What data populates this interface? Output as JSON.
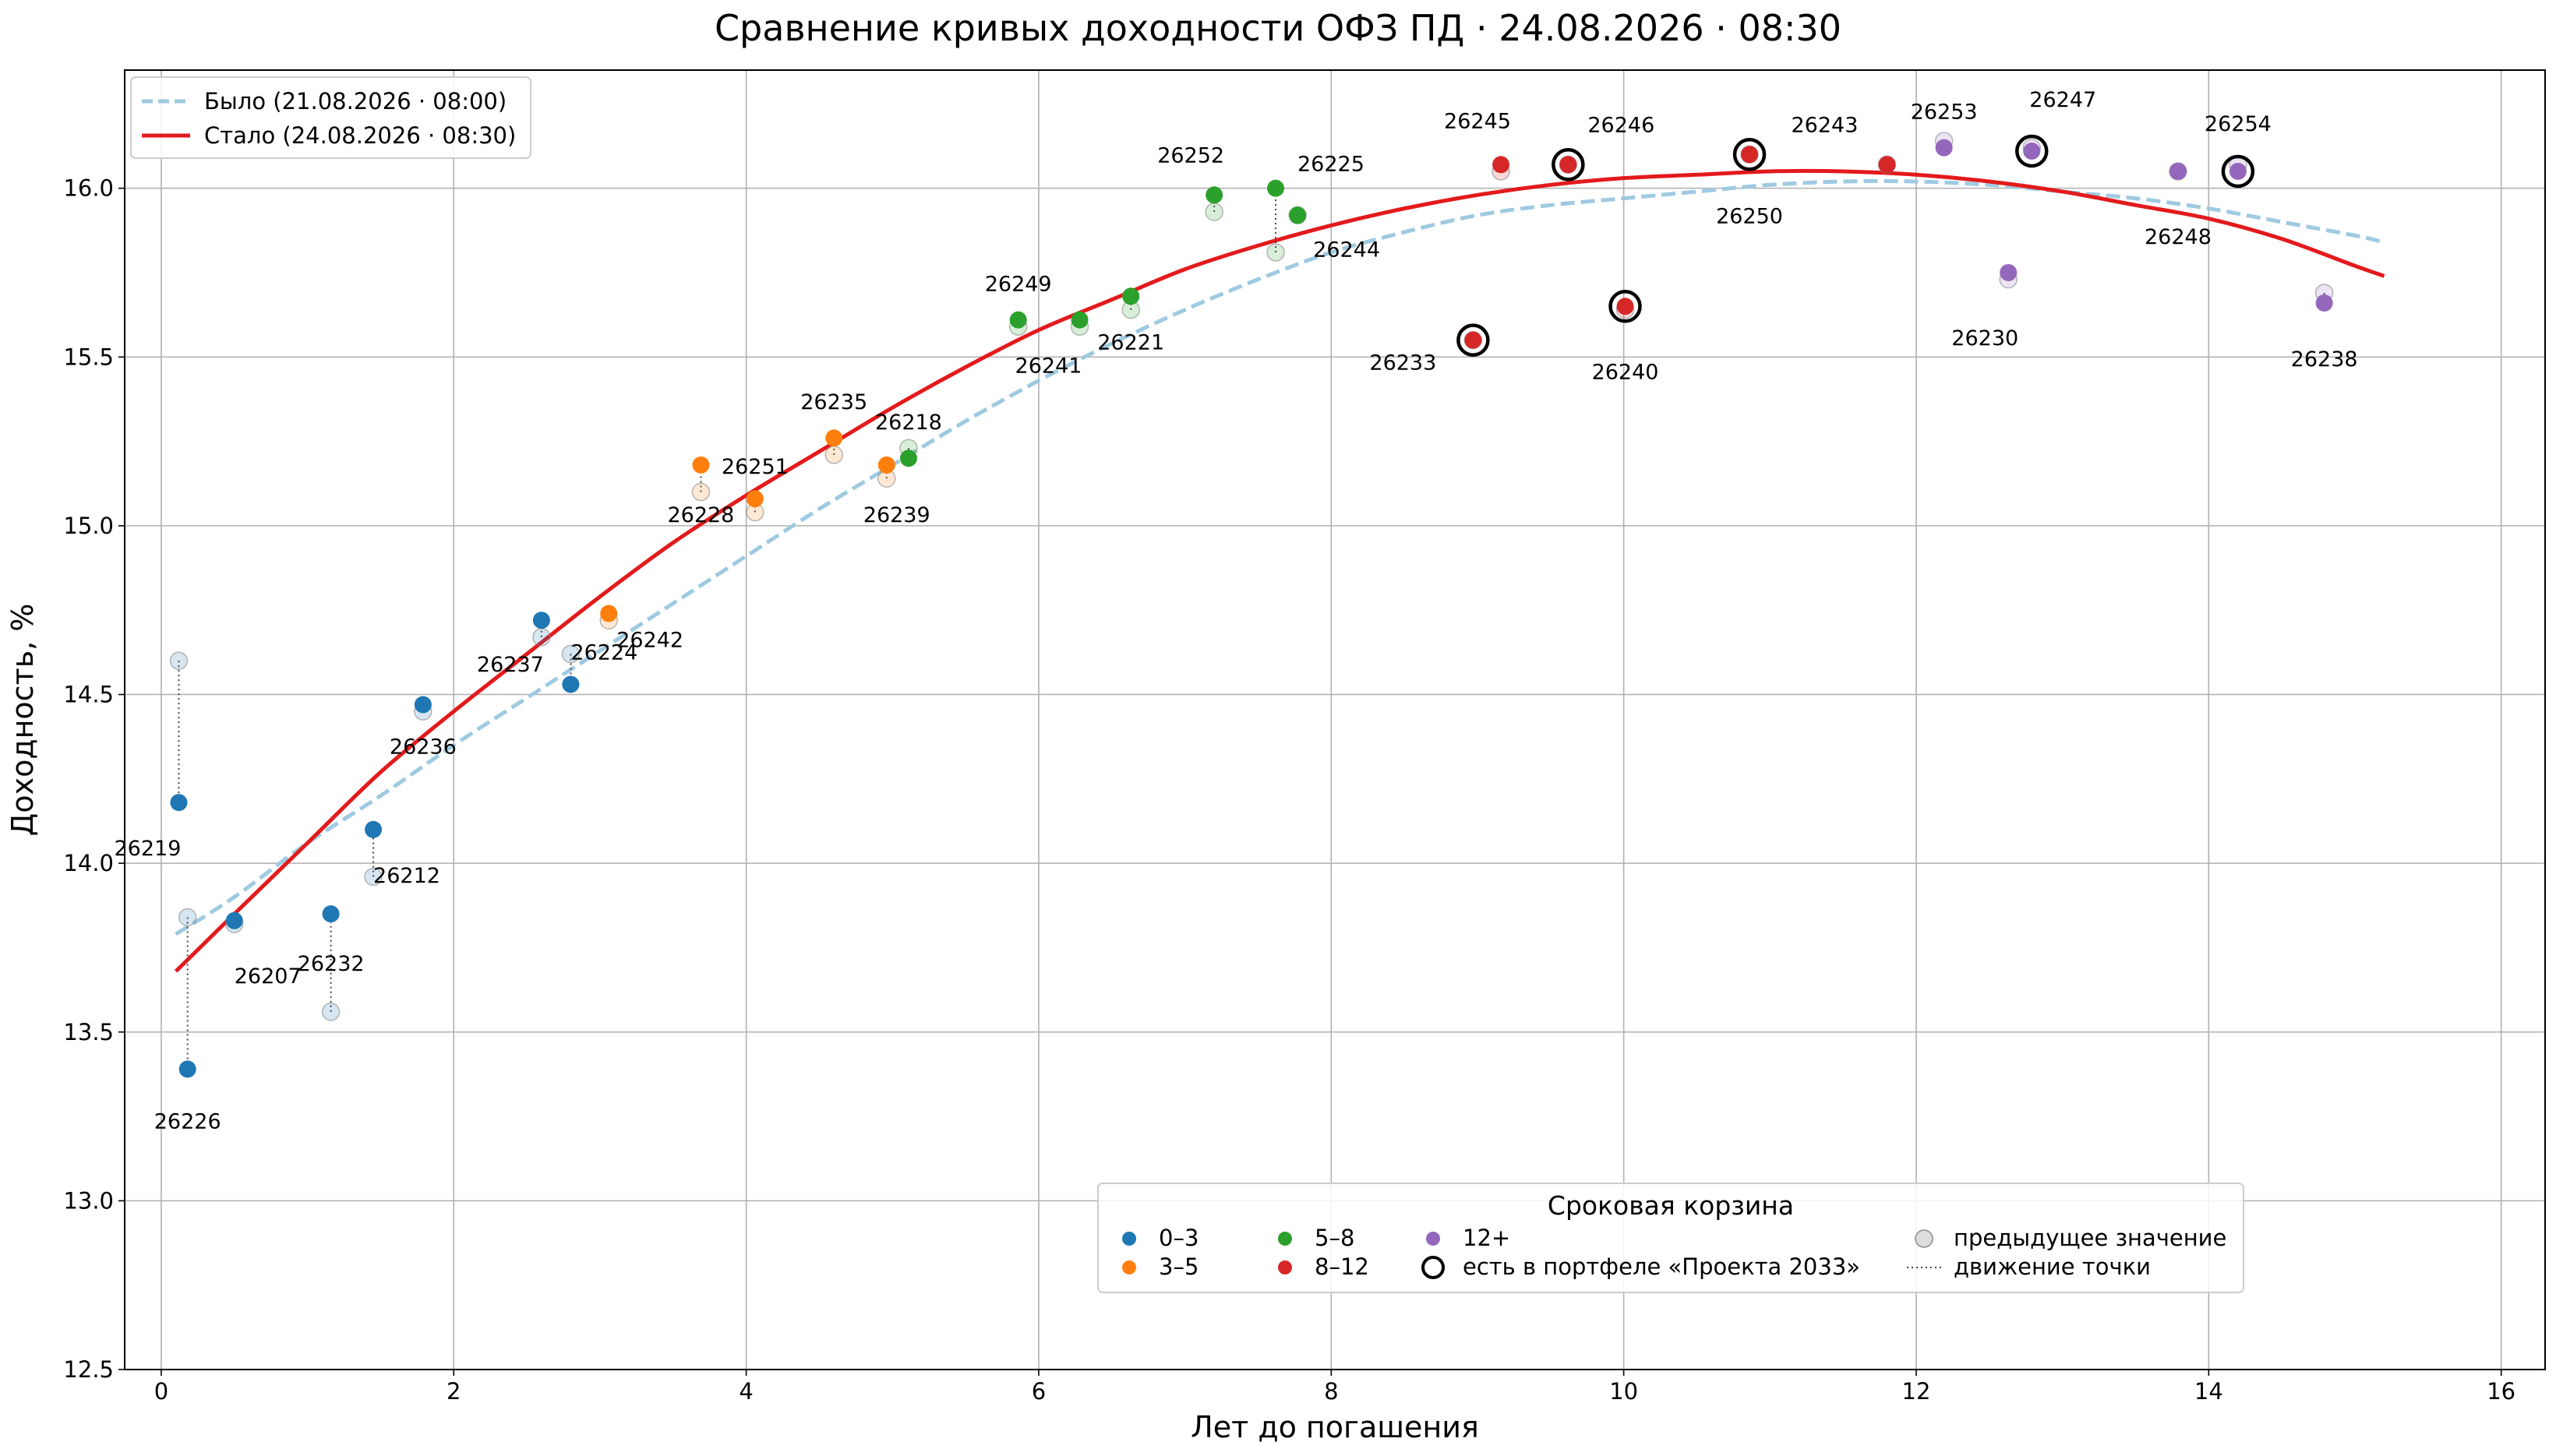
{
  "chart_data": {
    "type": "scatter",
    "title": "Сравнение кривых доходности ОФЗ ПД · 24.08.2026 · 08:30",
    "xlabel": "Лет до погашения",
    "ylabel": "Доходность, %",
    "xlim": [
      -0.25,
      16.3
    ],
    "ylim": [
      12.5,
      16.35
    ],
    "xticks": [
      0,
      2,
      4,
      6,
      8,
      10,
      12,
      14,
      16
    ],
    "yticks": [
      12.5,
      13.0,
      13.5,
      14.0,
      14.5,
      15.0,
      15.5,
      16.0
    ],
    "grid": true,
    "colors": {
      "0–3": "#1f77b4",
      "3–5": "#ff7f0e",
      "5–8": "#2ca02c",
      "8–12": "#d62728",
      "12+": "#9467bd",
      "old_curve": "#9ecae1",
      "new_curve": "#e31a1c"
    },
    "curves": [
      {
        "name": "Было (21.08.2026 · 08:00)",
        "style": "dashed",
        "x": [
          0.1,
          0.5,
          1,
          1.5,
          2,
          2.5,
          3,
          3.5,
          4,
          4.5,
          5,
          5.5,
          6,
          6.5,
          7,
          7.5,
          8,
          8.5,
          9,
          9.5,
          10,
          10.5,
          11,
          11.5,
          12,
          12.5,
          13,
          13.5,
          14,
          14.5,
          15,
          15.2
        ],
        "y": [
          13.79,
          13.9,
          14.06,
          14.2,
          14.35,
          14.49,
          14.63,
          14.77,
          14.91,
          15.05,
          15.18,
          15.31,
          15.43,
          15.54,
          15.64,
          15.73,
          15.81,
          15.87,
          15.92,
          15.95,
          15.97,
          15.99,
          16.01,
          16.02,
          16.02,
          16.01,
          15.99,
          15.97,
          15.94,
          15.9,
          15.86,
          15.84
        ]
      },
      {
        "name": "Стало (24.08.2026 · 08:30)",
        "style": "solid",
        "x": [
          0.1,
          0.5,
          1,
          1.5,
          2,
          2.5,
          3,
          3.5,
          4,
          4.5,
          5,
          5.5,
          6,
          6.5,
          7,
          7.5,
          8,
          8.5,
          9,
          9.5,
          10,
          10.5,
          11,
          11.5,
          12,
          12.5,
          13,
          13.5,
          14,
          14.5,
          15,
          15.2
        ],
        "y": [
          13.68,
          13.85,
          14.06,
          14.27,
          14.45,
          14.62,
          14.79,
          14.95,
          15.09,
          15.22,
          15.35,
          15.47,
          15.58,
          15.67,
          15.76,
          15.83,
          15.89,
          15.94,
          15.98,
          16.01,
          16.03,
          16.04,
          16.05,
          16.05,
          16.04,
          16.02,
          15.99,
          15.95,
          15.91,
          15.85,
          15.77,
          15.74
        ]
      }
    ],
    "points": [
      {
        "label": "26219",
        "bucket": "0–3",
        "x": 0.12,
        "y": 14.18,
        "y_prev": 14.6,
        "portfolio": false
      },
      {
        "label": "26226",
        "bucket": "0–3",
        "x": 0.18,
        "y": 13.39,
        "y_prev": 13.84,
        "portfolio": false
      },
      {
        "label": "26207",
        "bucket": "0–3",
        "x": 0.5,
        "y": 13.83,
        "y_prev": 13.82,
        "portfolio": false
      },
      {
        "label": "26232",
        "bucket": "0–3",
        "x": 1.16,
        "y": 13.85,
        "y_prev": 13.56,
        "portfolio": false
      },
      {
        "label": "26212",
        "bucket": "0–3",
        "x": 1.45,
        "y": 14.1,
        "y_prev": 13.96,
        "portfolio": false
      },
      {
        "label": "26236",
        "bucket": "0–3",
        "x": 1.79,
        "y": 14.47,
        "y_prev": 14.45,
        "portfolio": false
      },
      {
        "label": "26237",
        "bucket": "0–3",
        "x": 2.6,
        "y": 14.72,
        "y_prev": 14.67,
        "portfolio": false
      },
      {
        "label": "26224",
        "bucket": "0–3",
        "x": 2.8,
        "y": 14.53,
        "y_prev": 14.62,
        "portfolio": false
      },
      {
        "label": "26242",
        "bucket": "3–5",
        "x": 3.06,
        "y": 14.74,
        "y_prev": 14.72,
        "portfolio": false
      },
      {
        "label": "26228",
        "bucket": "3–5",
        "x": 3.69,
        "y": 15.18,
        "y_prev": 15.1,
        "portfolio": false
      },
      {
        "label": "26251",
        "bucket": "3–5",
        "x": 4.06,
        "y": 15.08,
        "y_prev": 15.04,
        "portfolio": false
      },
      {
        "label": "26235",
        "bucket": "3–5",
        "x": 4.6,
        "y": 15.26,
        "y_prev": 15.21,
        "portfolio": false
      },
      {
        "label": "26239",
        "bucket": "3–5",
        "x": 4.96,
        "y": 15.18,
        "y_prev": 15.14,
        "portfolio": false
      },
      {
        "label": "26218",
        "bucket": "5–8",
        "x": 5.11,
        "y": 15.2,
        "y_prev": 15.23,
        "portfolio": false
      },
      {
        "label": "26249",
        "bucket": "5–8",
        "x": 5.86,
        "y": 15.61,
        "y_prev": 15.59,
        "portfolio": false
      },
      {
        "label": "26241",
        "bucket": "5–8",
        "x": 6.28,
        "y": 15.61,
        "y_prev": 15.59,
        "portfolio": false
      },
      {
        "label": "26221",
        "bucket": "5–8",
        "x": 6.63,
        "y": 15.68,
        "y_prev": 15.64,
        "portfolio": false
      },
      {
        "label": "26252",
        "bucket": "5–8",
        "x": 7.2,
        "y": 15.98,
        "y_prev": 15.93,
        "portfolio": false
      },
      {
        "label": "26225",
        "bucket": "5–8",
        "x": 7.62,
        "y": 16.0,
        "y_prev": 15.81,
        "portfolio": false
      },
      {
        "label": "26244",
        "bucket": "5–8",
        "x": 7.77,
        "y": 15.92,
        "y_prev": 15.92,
        "portfolio": false
      },
      {
        "label": "26233",
        "bucket": "8–12",
        "x": 8.97,
        "y": 15.55,
        "y_prev": 15.55,
        "portfolio": true
      },
      {
        "label": "26245",
        "bucket": "8–12",
        "x": 9.16,
        "y": 16.07,
        "y_prev": 16.05,
        "portfolio": false
      },
      {
        "label": "26246",
        "bucket": "8–12",
        "x": 9.62,
        "y": 16.07,
        "y_prev": 16.07,
        "portfolio": true
      },
      {
        "label": "26240",
        "bucket": "8–12",
        "x": 10.01,
        "y": 15.65,
        "y_prev": 15.64,
        "portfolio": true
      },
      {
        "label": "26250",
        "bucket": "8–12",
        "x": 10.86,
        "y": 16.1,
        "y_prev": 16.1,
        "portfolio": true
      },
      {
        "label": "26243",
        "bucket": "8–12",
        "x": 11.8,
        "y": 16.07,
        "y_prev": 16.07,
        "portfolio": false
      },
      {
        "label": "26253",
        "bucket": "12+",
        "x": 12.19,
        "y": 16.12,
        "y_prev": 16.14,
        "portfolio": false
      },
      {
        "label": "26230",
        "bucket": "12+",
        "x": 12.63,
        "y": 15.75,
        "y_prev": 15.73,
        "portfolio": false
      },
      {
        "label": "26247",
        "bucket": "12+",
        "x": 12.79,
        "y": 16.11,
        "y_prev": 16.12,
        "portfolio": true
      },
      {
        "label": "26248",
        "bucket": "12+",
        "x": 13.79,
        "y": 16.05,
        "y_prev": 16.05,
        "portfolio": false
      },
      {
        "label": "26254",
        "bucket": "12+",
        "x": 14.2,
        "y": 16.05,
        "y_prev": 16.07,
        "portfolio": true
      },
      {
        "label": "26238",
        "bucket": "12+",
        "x": 14.79,
        "y": 15.66,
        "y_prev": 15.69,
        "portfolio": false
      }
    ],
    "curve_legend_position": "top-left",
    "legend": {
      "title": "Сроковая корзина",
      "position": "bottom-right",
      "entries": [
        "0–3",
        "3–5",
        "5–8",
        "8–12",
        "12+",
        "есть в портфеле «Проекта 2033»",
        "предыдущее значение",
        "движение точки"
      ]
    }
  }
}
